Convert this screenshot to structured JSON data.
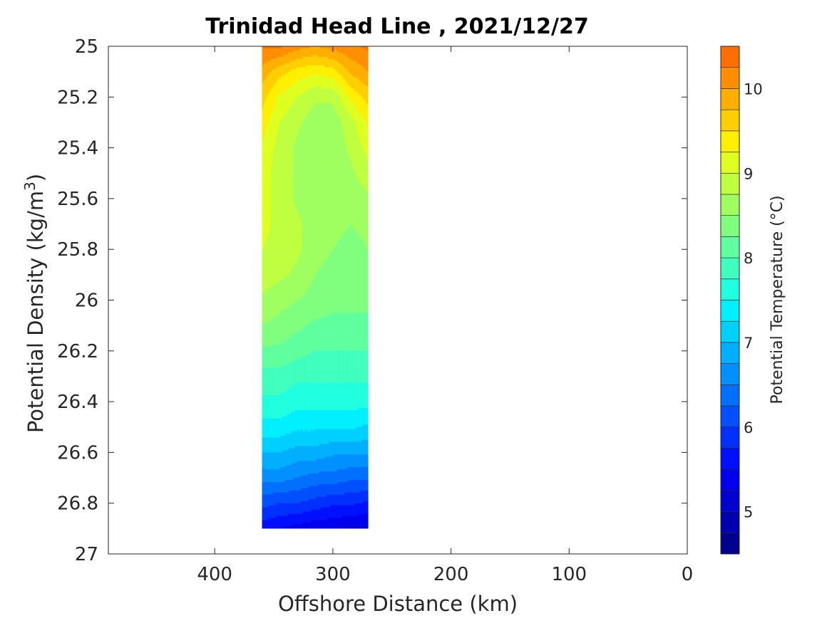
{
  "chart_data": {
    "type": "heatmap",
    "title": "Trinidad Head Line , 2021/12/27",
    "xlabel": "Offshore Distance (km)",
    "ylabel_main": "Potential Density (kg/m",
    "ylabel_sup": "3",
    "ylabel_end": ")",
    "colorbar_label": "Potential Temperature (°C)",
    "xlim": [
      490,
      0
    ],
    "ylim": [
      25,
      27
    ],
    "x_reversed": true,
    "y_reversed": true,
    "xticks": [
      {
        "value": 400,
        "label": "400"
      },
      {
        "value": 300,
        "label": "300"
      },
      {
        "value": 200,
        "label": "200"
      },
      {
        "value": 100,
        "label": "100"
      },
      {
        "value": 0,
        "label": "0"
      }
    ],
    "yticks": [
      {
        "value": 25,
        "label": "25"
      },
      {
        "value": 25.2,
        "label": "25.2"
      },
      {
        "value": 25.4,
        "label": "25.4"
      },
      {
        "value": 25.6,
        "label": "25.6"
      },
      {
        "value": 25.8,
        "label": "25.8"
      },
      {
        "value": 26,
        "label": "26"
      },
      {
        "value": 26.2,
        "label": "26.2"
      },
      {
        "value": 26.4,
        "label": "26.4"
      },
      {
        "value": 26.6,
        "label": "26.6"
      },
      {
        "value": 26.8,
        "label": "26.8"
      },
      {
        "value": 27,
        "label": "27"
      }
    ],
    "colorbar_range": [
      4.5,
      10.5
    ],
    "colorbar_ticks": [
      {
        "value": 5,
        "label": "5"
      },
      {
        "value": 6,
        "label": "6"
      },
      {
        "value": 7,
        "label": "7"
      },
      {
        "value": 8,
        "label": "8"
      },
      {
        "value": 9,
        "label": "9"
      },
      {
        "value": 10,
        "label": "10"
      }
    ],
    "contour_levels": [
      {
        "min": 4.5,
        "max": 4.75,
        "color": "#00008f"
      },
      {
        "min": 4.75,
        "max": 5.0,
        "color": "#0000af"
      },
      {
        "min": 5.0,
        "max": 5.25,
        "color": "#0000cf"
      },
      {
        "min": 5.25,
        "max": 5.5,
        "color": "#0000ef"
      },
      {
        "min": 5.5,
        "max": 5.75,
        "color": "#0010ff"
      },
      {
        "min": 5.75,
        "max": 6.0,
        "color": "#0030ff"
      },
      {
        "min": 6.0,
        "max": 6.25,
        "color": "#0050ff"
      },
      {
        "min": 6.25,
        "max": 6.5,
        "color": "#0070ff"
      },
      {
        "min": 6.5,
        "max": 6.75,
        "color": "#0090ff"
      },
      {
        "min": 6.75,
        "max": 7.0,
        "color": "#00b0ff"
      },
      {
        "min": 7.0,
        "max": 7.25,
        "color": "#00d0ff"
      },
      {
        "min": 7.25,
        "max": 7.5,
        "color": "#00f0ff"
      },
      {
        "min": 7.5,
        "max": 7.75,
        "color": "#20ffdf"
      },
      {
        "min": 7.75,
        "max": 8.0,
        "color": "#40ffbf"
      },
      {
        "min": 8.0,
        "max": 8.25,
        "color": "#60ff9f"
      },
      {
        "min": 8.25,
        "max": 8.5,
        "color": "#80ff7f"
      },
      {
        "min": 8.5,
        "max": 8.75,
        "color": "#9fff60"
      },
      {
        "min": 8.75,
        "max": 9.0,
        "color": "#bfff40"
      },
      {
        "min": 9.0,
        "max": 9.25,
        "color": "#dfff20"
      },
      {
        "min": 9.25,
        "max": 9.5,
        "color": "#ffef00"
      },
      {
        "min": 9.5,
        "max": 9.75,
        "color": "#ffcf00"
      },
      {
        "min": 9.75,
        "max": 10.0,
        "color": "#ffaf00"
      },
      {
        "min": 10.0,
        "max": 10.25,
        "color": "#ff8f00"
      },
      {
        "min": 10.25,
        "max": 10.5,
        "color": "#ff6f00"
      }
    ],
    "section_x_range": [
      360,
      270
    ],
    "section_density_range": [
      25,
      26.9
    ],
    "stations_x": [
      360,
      345,
      330,
      315,
      300,
      285,
      270
    ],
    "density_levels": [
      25.0,
      25.1,
      25.2,
      25.3,
      25.4,
      25.5,
      25.6,
      25.7,
      25.8,
      25.9,
      26.0,
      26.1,
      26.2,
      26.3,
      26.4,
      26.5,
      26.6,
      26.7,
      26.8,
      26.9
    ],
    "temperature_grid": [
      [
        10.3,
        10.3,
        10.1,
        10.0,
        10.1,
        10.2,
        10.3
      ],
      [
        9.9,
        9.6,
        9.4,
        9.3,
        9.4,
        9.8,
        10.0
      ],
      [
        9.6,
        9.2,
        9.0,
        8.8,
        8.8,
        9.3,
        9.6
      ],
      [
        9.4,
        9.0,
        8.8,
        8.6,
        8.6,
        8.9,
        9.3
      ],
      [
        9.2,
        8.9,
        8.7,
        8.6,
        8.6,
        8.8,
        9.1
      ],
      [
        9.1,
        8.9,
        8.7,
        8.6,
        8.6,
        8.7,
        8.9
      ],
      [
        9.1,
        8.9,
        8.7,
        8.7,
        8.6,
        8.6,
        8.7
      ],
      [
        9.1,
        8.9,
        8.8,
        8.6,
        8.6,
        8.5,
        8.6
      ],
      [
        9.0,
        8.9,
        8.8,
        8.6,
        8.5,
        8.4,
        8.5
      ],
      [
        8.9,
        8.8,
        8.7,
        8.5,
        8.4,
        8.4,
        8.4
      ],
      [
        8.7,
        8.6,
        8.5,
        8.4,
        8.3,
        8.3,
        8.3
      ],
      [
        8.5,
        8.4,
        8.3,
        8.2,
        8.2,
        8.2,
        8.2
      ],
      [
        8.2,
        8.2,
        8.1,
        8.0,
        8.0,
        8.0,
        8.0
      ],
      [
        7.9,
        7.9,
        7.8,
        7.8,
        7.8,
        7.8,
        7.8
      ],
      [
        7.7,
        7.7,
        7.6,
        7.6,
        7.6,
        7.6,
        7.6
      ],
      [
        7.4,
        7.4,
        7.3,
        7.3,
        7.3,
        7.3,
        7.2
      ],
      [
        7.0,
        7.0,
        6.9,
        6.9,
        6.8,
        6.8,
        6.8
      ],
      [
        6.6,
        6.6,
        6.5,
        6.4,
        6.4,
        6.3,
        6.3
      ],
      [
        6.1,
        6.0,
        6.0,
        5.9,
        5.8,
        5.8,
        5.7
      ],
      [
        5.6,
        5.5,
        5.4,
        5.3,
        5.3,
        5.2,
        5.2
      ]
    ]
  }
}
